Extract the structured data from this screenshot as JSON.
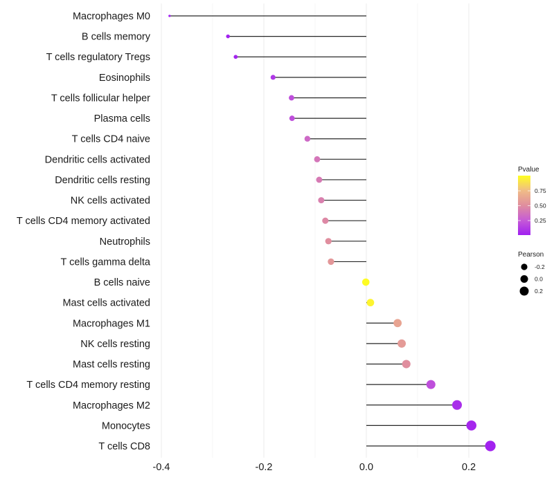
{
  "chart_data": {
    "type": "lollipop",
    "title": "",
    "xlabel": "",
    "ylabel": "",
    "xlim": [
      -0.4,
      0.25
    ],
    "x_ticks": [
      -0.4,
      -0.2,
      0.0,
      0.2
    ],
    "x_tick_labels": [
      "-0.4",
      "-0.2",
      "0.0",
      "0.2"
    ],
    "x_minor_gridlines": [
      -0.3,
      -0.1,
      0.1
    ],
    "grid": true,
    "categories": [
      "Macrophages M0",
      "B cells memory",
      "T cells regulatory  Tregs ",
      "Eosinophils",
      "T cells follicular helper",
      "Plasma cells",
      "T cells CD4 naive",
      "Dendritic cells activated",
      "Dendritic cells resting",
      "NK cells activated",
      "T cells CD4 memory activated",
      "Neutrophils",
      "T cells gamma delta",
      "B cells naive",
      "Mast cells activated",
      "Macrophages M1",
      "NK cells resting",
      "Mast cells resting",
      "T cells CD4 memory resting",
      "Macrophages M2",
      "Monocytes",
      "T cells CD8"
    ],
    "pearson": [
      -0.384,
      -0.27,
      -0.255,
      -0.182,
      -0.146,
      -0.145,
      -0.115,
      -0.096,
      -0.092,
      -0.088,
      -0.08,
      -0.074,
      -0.069,
      -0.001,
      0.008,
      0.061,
      0.069,
      0.078,
      0.126,
      0.177,
      0.205,
      0.242
    ],
    "pvalue": [
      0.001,
      0.01,
      0.02,
      0.1,
      0.2,
      0.2,
      0.32,
      0.38,
      0.4,
      0.43,
      0.47,
      0.5,
      0.55,
      0.99,
      0.96,
      0.62,
      0.57,
      0.5,
      0.2,
      0.06,
      0.03,
      0.01
    ],
    "color_legend": {
      "title": "Pvalue",
      "range": [
        0.0,
        1.0
      ],
      "ticks": [
        0.25,
        0.5,
        0.75
      ],
      "tick_labels": [
        "0.25",
        "0.50",
        "0.75"
      ],
      "low_color": "#A020F0",
      "high_color": "#FFFF00",
      "placement": "right"
    },
    "size_legend": {
      "title": "Pearson",
      "values": [
        -0.2,
        0.0,
        0.2
      ],
      "labels": [
        "-0.2",
        "0.0",
        "0.2"
      ],
      "placement": "right"
    },
    "stem_color": "#000000",
    "point_colorscale": [
      "#A020F0",
      "#CF6CC8",
      "#E89C90",
      "#F3C980",
      "#FFFF00"
    ]
  }
}
